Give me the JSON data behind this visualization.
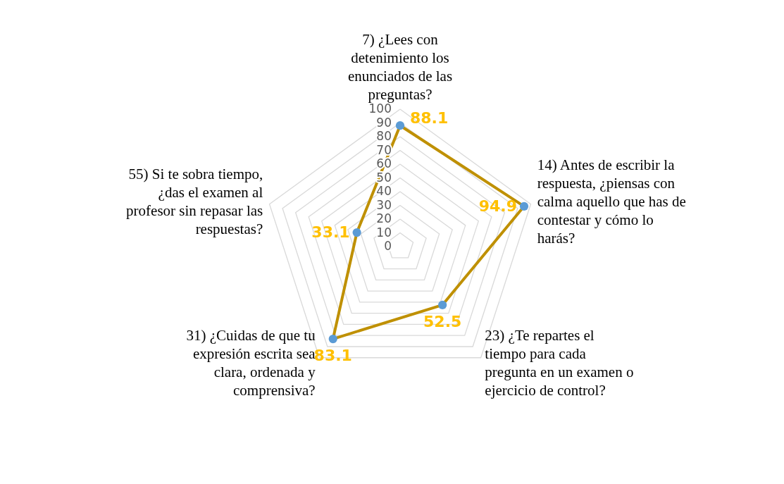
{
  "chart_data": {
    "type": "radar",
    "categories": [
      "7) ¿Lees con detenimiento los enunciados de las preguntas?",
      "14) Antes de escribir la respuesta, ¿piensas con calma aquello que has de contestar y cómo lo harás?",
      "23) ¿Te repartes el tiempo para cada pregunta en un examen o ejercicio de control?",
      "31) ¿Cuidas de que tu expresión escrita sea clara, ordenada y comprensiva?",
      "55) Si te sobra tiempo, ¿das el examen al profesor sin repasar las respuestas?"
    ],
    "series": [
      {
        "color": "#bf9000",
        "values": [
          88.1,
          94.9,
          52.5,
          83.1,
          33.1
        ]
      }
    ],
    "ylim": [
      0,
      100
    ],
    "yticks": [
      0,
      10,
      20,
      30,
      40,
      50,
      60,
      70,
      80,
      90,
      100
    ],
    "grid": true,
    "marker": "circle",
    "data_labels": true
  }
}
